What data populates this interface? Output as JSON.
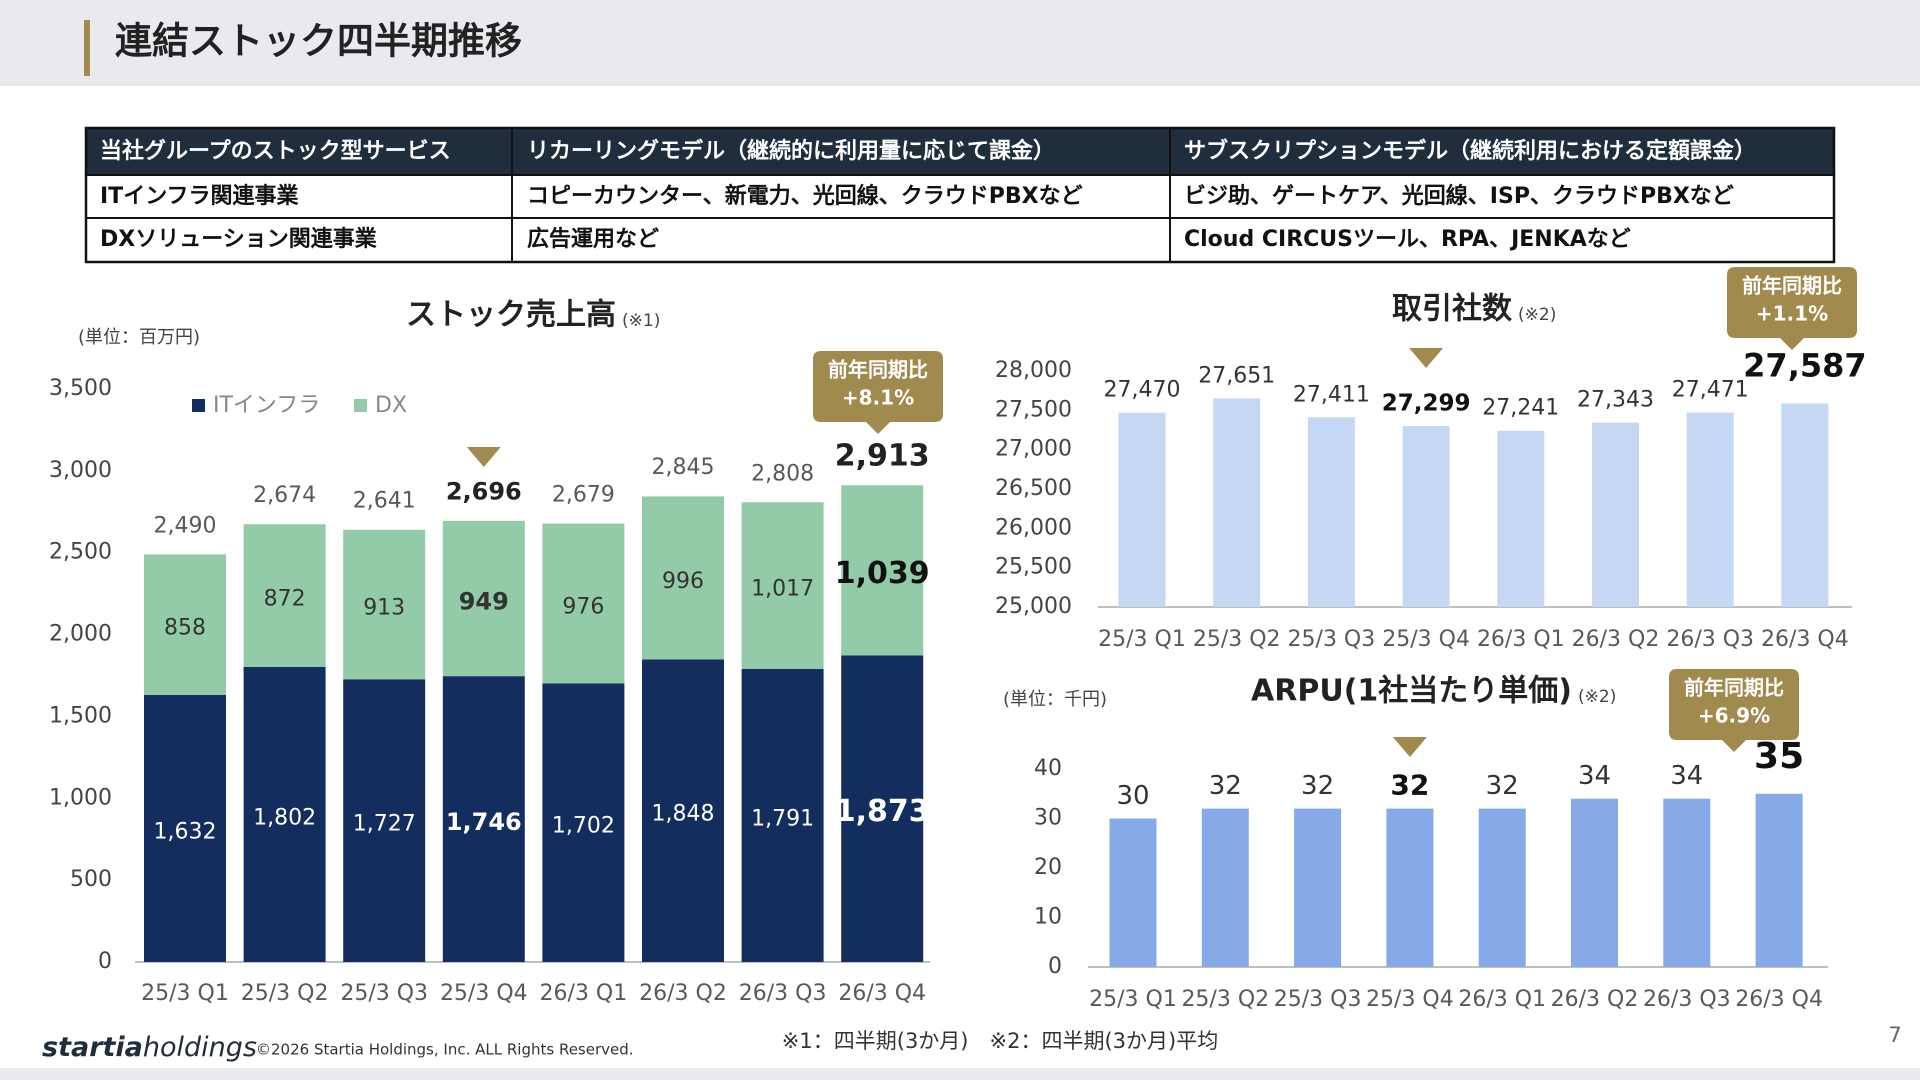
{
  "header": {
    "title": "連結ストック四半期推移"
  },
  "table": {
    "header": [
      "当社グループのストック型サービス",
      "リカーリングモデル（継続的に利用量に応じて課金）",
      "サブスクリプションモデル（継続利用における定額課金）"
    ],
    "rows": [
      [
        "ITインフラ関連事業",
        "コピーカウンター、新電力、光回線、クラウドPBXなど",
        "ビジ助、ゲートケア、光回線、ISP、クラウドPBXなど"
      ],
      [
        "DXソリューション関連事業",
        "広告運用など",
        "Cloud CIRCUSツール、RPA、JENKAなど"
      ]
    ]
  },
  "chart_data": [
    {
      "type": "stacked-bar",
      "title": "ストック売上高",
      "title_note": "(※1)",
      "unit_label": "(単位：百万円)",
      "categories": [
        "25/3 Q1",
        "25/3 Q2",
        "25/3 Q3",
        "25/3 Q4",
        "26/3 Q1",
        "26/3 Q2",
        "26/3 Q3",
        "26/3 Q4"
      ],
      "series": [
        {
          "name": "ITインフラ",
          "color": "#132d5e",
          "values": [
            1632,
            1802,
            1727,
            1746,
            1702,
            1848,
            1791,
            1873
          ],
          "value_labels": [
            "1,632",
            "1,802",
            "1,727",
            "1,746",
            "1,702",
            "1,848",
            "1,791",
            "1,873"
          ]
        },
        {
          "name": "DX",
          "color": "#93cba8",
          "values": [
            858,
            872,
            913,
            949,
            976,
            996,
            1017,
            1039
          ],
          "value_labels": [
            "858",
            "872",
            "913",
            "949",
            "976",
            "996",
            "1,017",
            "1,039"
          ]
        }
      ],
      "totals": {
        "values": [
          2490,
          2674,
          2641,
          2696,
          2679,
          2845,
          2808,
          2913
        ],
        "value_labels": [
          "2,490",
          "2,674",
          "2,641",
          "2,696",
          "2,679",
          "2,845",
          "2,808",
          "2,913"
        ]
      },
      "ylim": [
        0,
        3500
      ],
      "yticks": [
        0,
        500,
        {
          "value": 1000,
          "label": "1,000"
        },
        {
          "value": 1500,
          "label": "1,500"
        },
        {
          "value": 2000,
          "label": "2,000"
        },
        {
          "value": 2500,
          "label": "2,500"
        },
        {
          "value": 3000,
          "label": "3,000"
        },
        {
          "value": 3500,
          "label": "3,500"
        }
      ],
      "legend": "top-left",
      "grid": false,
      "badge": {
        "label": "前年同期比",
        "change": "+8.1%"
      }
    },
    {
      "type": "bar",
      "title": "取引社数",
      "title_note": "(※2)",
      "categories": [
        "25/3 Q1",
        "25/3 Q2",
        "25/3 Q3",
        "25/3 Q4",
        "26/3 Q1",
        "26/3 Q2",
        "26/3 Q3",
        "26/3 Q4"
      ],
      "values": [
        27470,
        27651,
        27411,
        27299,
        27241,
        27343,
        27471,
        27587
      ],
      "value_labels": [
        "27,470",
        "27,651",
        "27,411",
        "27,299",
        "27,241",
        "27,343",
        "27,471",
        "27,587"
      ],
      "color": "#c5d7f3",
      "ylim": [
        25000,
        28000
      ],
      "yticks": [
        {
          "value": 25000,
          "label": "25,000"
        },
        {
          "value": 25500,
          "label": "25,500"
        },
        {
          "value": 26000,
          "label": "26,000"
        },
        {
          "value": 26500,
          "label": "26,500"
        },
        {
          "value": 27000,
          "label": "27,000"
        },
        {
          "value": 27500,
          "label": "27,500"
        },
        {
          "value": 28000,
          "label": "28,000"
        }
      ],
      "grid": false,
      "badge": {
        "label": "前年同期比",
        "change": "+1.1%"
      }
    },
    {
      "type": "bar",
      "title": "ARPU(1社当たり単価)",
      "title_note": "(※2)",
      "unit_label": "(単位：千円)",
      "categories": [
        "25/3 Q1",
        "25/3 Q2",
        "25/3 Q3",
        "25/3 Q4",
        "26/3 Q1",
        "26/3 Q2",
        "26/3 Q3",
        "26/3 Q4"
      ],
      "values": [
        30,
        32,
        32,
        32,
        32,
        34,
        34,
        35
      ],
      "color": "#86a9e8",
      "ylim": [
        0,
        40
      ],
      "yticks": [
        0,
        10,
        20,
        30,
        40
      ],
      "grid": false,
      "badge": {
        "label": "前年同期比",
        "change": "+6.9%"
      }
    }
  ],
  "footer": {
    "logo_main": "startia",
    "logo_sub": "holdings",
    "copyright": "©2026 Startia Holdings, Inc. ALL Rights Reserved.",
    "notes": "※1：四半期(3か月)　※2：四半期(3か月)平均",
    "page": "7"
  }
}
